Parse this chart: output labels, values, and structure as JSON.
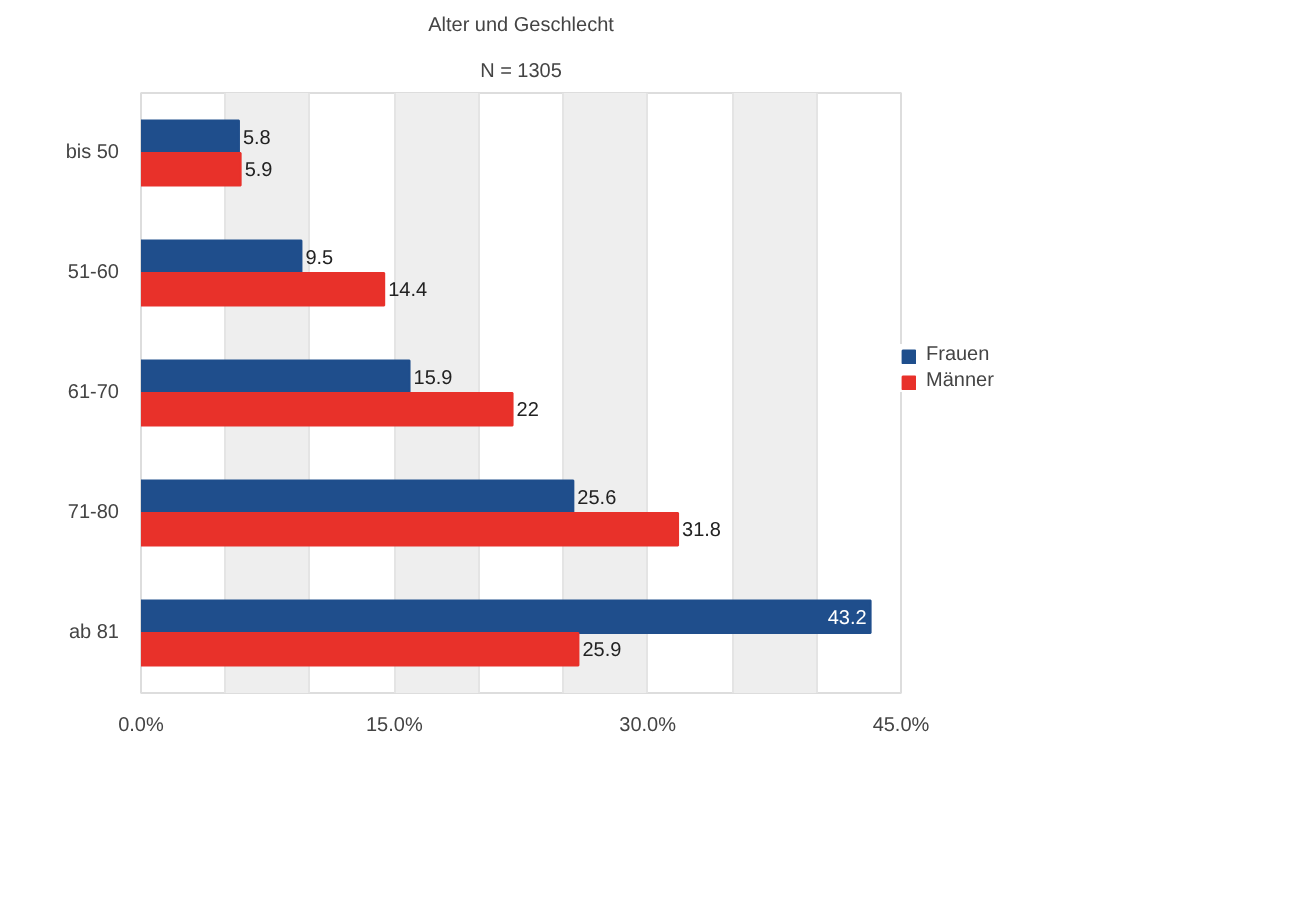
{
  "chart_data": {
    "type": "bar",
    "orientation": "horizontal",
    "title": "Alter und Geschlecht",
    "subtitle": "N = 1305",
    "categories": [
      "bis 50",
      "51-60",
      "61-70",
      "71-80",
      "ab 81"
    ],
    "series": [
      {
        "name": "Frauen",
        "color": "#1f4e8c",
        "values": [
          5.8,
          9.5,
          15.9,
          25.6,
          43.2
        ]
      },
      {
        "name": "Männer",
        "color": "#e8312a",
        "values": [
          5.9,
          14.4,
          22,
          31.8,
          25.9
        ]
      }
    ],
    "xlim": [
      0,
      45
    ],
    "xticks": [
      {
        "value": 0,
        "label": "0.0%"
      },
      {
        "value": 5,
        "label": null
      },
      {
        "value": 10,
        "label": null
      },
      {
        "value": 15,
        "label": "15.0%"
      },
      {
        "value": 20,
        "label": null
      },
      {
        "value": 25,
        "label": null
      },
      {
        "value": 30,
        "label": "30.0%"
      },
      {
        "value": 35,
        "label": null
      },
      {
        "value": 40,
        "label": null
      },
      {
        "value": 45,
        "label": "45.0%"
      }
    ],
    "grid": "x",
    "legend": "right",
    "data_labels": true
  }
}
